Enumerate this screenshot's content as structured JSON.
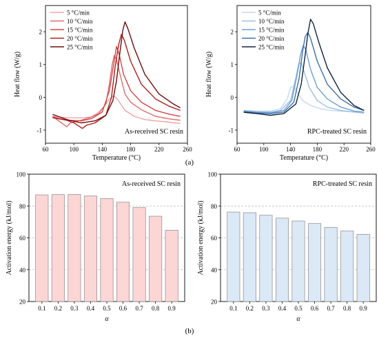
{
  "panel_labels": [
    "(a)",
    "(b)"
  ],
  "chart_data": [
    {
      "type": "line",
      "panel": "a",
      "annotation": "As-received SC resin",
      "xlabel": "Temperature (°C)",
      "ylabel": "Heat flow (W/g)",
      "xlim": [
        60,
        260
      ],
      "ylim": [
        -1.4,
        2.8
      ],
      "xticks": [
        60,
        100,
        140,
        180,
        220,
        260
      ],
      "yticks": [
        -1,
        0,
        1,
        2
      ],
      "legend_position": "top-left",
      "series": [
        {
          "name": "5 °C/min",
          "color": "#f2a3a3",
          "points": [
            [
              70,
              -0.58
            ],
            [
              90,
              -0.62
            ],
            [
              110,
              -0.63
            ],
            [
              125,
              -0.6
            ],
            [
              135,
              -0.45
            ],
            [
              142,
              -0.3
            ],
            [
              150,
              -0.05
            ],
            [
              156,
              0.05
            ],
            [
              162,
              -0.08
            ],
            [
              172,
              -0.4
            ],
            [
              185,
              -0.58
            ],
            [
              200,
              -0.68
            ],
            [
              215,
              -0.72
            ],
            [
              230,
              -0.75
            ],
            [
              250,
              -0.8
            ]
          ]
        },
        {
          "name": "10 °C/min",
          "color": "#e06b6b",
          "points": [
            [
              70,
              -0.58
            ],
            [
              90,
              -0.9
            ],
            [
              95,
              -0.78
            ],
            [
              110,
              -0.7
            ],
            [
              125,
              -0.6
            ],
            [
              135,
              -0.5
            ],
            [
              145,
              -0.2
            ],
            [
              150,
              0.4
            ],
            [
              154,
              1.0
            ],
            [
              157,
              1.28
            ],
            [
              160,
              1.15
            ],
            [
              165,
              0.7
            ],
            [
              172,
              0.1
            ],
            [
              180,
              -0.15
            ],
            [
              195,
              -0.38
            ],
            [
              215,
              -0.58
            ],
            [
              235,
              -0.66
            ],
            [
              250,
              -0.7
            ]
          ]
        },
        {
          "name": "15 °C/min",
          "color": "#d64545",
          "points": [
            [
              70,
              -0.6
            ],
            [
              90,
              -0.7
            ],
            [
              110,
              -0.72
            ],
            [
              125,
              -0.65
            ],
            [
              140,
              -0.45
            ],
            [
              150,
              0.2
            ],
            [
              156,
              1.0
            ],
            [
              160,
              1.55
            ],
            [
              164,
              1.3
            ],
            [
              170,
              0.7
            ],
            [
              180,
              0.2
            ],
            [
              195,
              -0.15
            ],
            [
              215,
              -0.4
            ],
            [
              235,
              -0.52
            ],
            [
              250,
              -0.58
            ]
          ]
        },
        {
          "name": "20 °C/min",
          "color": "#b01c1c",
          "points": [
            [
              70,
              -0.62
            ],
            [
              90,
              -0.7
            ],
            [
              100,
              -0.78
            ],
            [
              112,
              -0.95
            ],
            [
              118,
              -0.85
            ],
            [
              130,
              -0.78
            ],
            [
              145,
              -0.55
            ],
            [
              153,
              0.0
            ],
            [
              158,
              0.9
            ],
            [
              163,
              1.6
            ],
            [
              167,
              1.92
            ],
            [
              171,
              1.75
            ],
            [
              180,
              1.1
            ],
            [
              195,
              0.4
            ],
            [
              215,
              -0.05
            ],
            [
              235,
              -0.28
            ],
            [
              250,
              -0.4
            ]
          ]
        },
        {
          "name": "25 °C/min",
          "color": "#6e0a0a",
          "points": [
            [
              70,
              -0.52
            ],
            [
              90,
              -0.68
            ],
            [
              110,
              -0.78
            ],
            [
              130,
              -0.72
            ],
            [
              145,
              -0.55
            ],
            [
              155,
              -0.1
            ],
            [
              160,
              0.5
            ],
            [
              165,
              1.4
            ],
            [
              169,
              2.05
            ],
            [
              172,
              2.3
            ],
            [
              176,
              2.1
            ],
            [
              185,
              1.5
            ],
            [
              200,
              0.7
            ],
            [
              220,
              0.1
            ],
            [
              240,
              -0.2
            ],
            [
              250,
              -0.32
            ]
          ]
        }
      ]
    },
    {
      "type": "line",
      "panel": "a",
      "annotation": "RPC-treated SC resin",
      "xlabel": "Temperature (°C)",
      "ylabel": "Heat flow (W/g)",
      "xlim": [
        60,
        260
      ],
      "ylim": [
        -1.4,
        2.8
      ],
      "xticks": [
        60,
        100,
        140,
        180,
        220,
        260
      ],
      "yticks": [
        -1,
        0,
        1,
        2
      ],
      "legend_position": "top-left",
      "series": [
        {
          "name": "5 °C/min",
          "color": "#c4d9ef",
          "points": [
            [
              70,
              -0.4
            ],
            [
              90,
              -0.42
            ],
            [
              110,
              -0.42
            ],
            [
              125,
              -0.35
            ],
            [
              135,
              -0.05
            ],
            [
              140,
              0.3
            ],
            [
              145,
              0.35
            ],
            [
              150,
              0.15
            ],
            [
              158,
              -0.1
            ],
            [
              170,
              -0.25
            ],
            [
              185,
              -0.35
            ],
            [
              200,
              -0.4
            ],
            [
              220,
              -0.43
            ],
            [
              240,
              -0.45
            ],
            [
              250,
              -0.45
            ]
          ]
        },
        {
          "name": "10 °C/min",
          "color": "#9bbde4",
          "points": [
            [
              70,
              -0.4
            ],
            [
              90,
              -0.44
            ],
            [
              110,
              -0.45
            ],
            [
              125,
              -0.4
            ],
            [
              140,
              -0.1
            ],
            [
              148,
              0.6
            ],
            [
              152,
              1.0
            ],
            [
              156,
              1.05
            ],
            [
              160,
              0.8
            ],
            [
              168,
              0.3
            ],
            [
              180,
              -0.1
            ],
            [
              195,
              -0.3
            ],
            [
              215,
              -0.4
            ],
            [
              235,
              -0.45
            ],
            [
              250,
              -0.48
            ]
          ]
        },
        {
          "name": "15 °C/min",
          "color": "#6d9fd3",
          "points": [
            [
              70,
              -0.42
            ],
            [
              90,
              -0.46
            ],
            [
              110,
              -0.48
            ],
            [
              130,
              -0.4
            ],
            [
              142,
              -0.1
            ],
            [
              150,
              0.7
            ],
            [
              155,
              1.3
            ],
            [
              159,
              1.58
            ],
            [
              163,
              1.45
            ],
            [
              170,
              0.85
            ],
            [
              180,
              0.3
            ],
            [
              195,
              -0.05
            ],
            [
              215,
              -0.3
            ],
            [
              235,
              -0.42
            ],
            [
              250,
              -0.45
            ]
          ]
        },
        {
          "name": "20 °C/min",
          "color": "#3e6fa6",
          "points": [
            [
              70,
              -0.44
            ],
            [
              90,
              -0.48
            ],
            [
              110,
              -0.5
            ],
            [
              130,
              -0.45
            ],
            [
              145,
              -0.15
            ],
            [
              153,
              0.6
            ],
            [
              158,
              1.4
            ],
            [
              162,
              1.85
            ],
            [
              166,
              1.98
            ],
            [
              170,
              1.8
            ],
            [
              180,
              1.1
            ],
            [
              195,
              0.4
            ],
            [
              215,
              -0.05
            ],
            [
              235,
              -0.3
            ],
            [
              250,
              -0.4
            ]
          ]
        },
        {
          "name": "25 °C/min",
          "color": "#10233f",
          "points": [
            [
              70,
              -0.46
            ],
            [
              90,
              -0.5
            ],
            [
              110,
              -0.55
            ],
            [
              130,
              -0.5
            ],
            [
              148,
              -0.2
            ],
            [
              156,
              0.4
            ],
            [
              162,
              1.3
            ],
            [
              166,
              1.95
            ],
            [
              170,
              2.38
            ],
            [
              174,
              2.25
            ],
            [
              182,
              1.7
            ],
            [
              195,
              0.9
            ],
            [
              215,
              0.15
            ],
            [
              235,
              -0.25
            ],
            [
              250,
              -0.4
            ]
          ]
        }
      ]
    },
    {
      "type": "bar",
      "panel": "b",
      "annotation": "As-received SC resin",
      "xlabel": "α",
      "ylabel": "Activation energy (kJ/mol)",
      "categories": [
        "0.1",
        "0.2",
        "0.3",
        "0.4",
        "0.5",
        "0.6",
        "0.7",
        "0.8",
        "0.9"
      ],
      "values": [
        87.0,
        87.2,
        87.3,
        86.3,
        84.7,
        82.4,
        79.0,
        73.6,
        64.8
      ],
      "ylim": [
        20,
        100
      ],
      "yticks": [
        20,
        40,
        60,
        80,
        100
      ],
      "grid": "horizontal dashed",
      "bar_color": "#fcd5d5",
      "edge_color": "#8a8a8a"
    },
    {
      "type": "bar",
      "panel": "b",
      "annotation": "RPC-treated SC resin",
      "xlabel": "α",
      "ylabel": "Activation energy (kJ/mol)",
      "categories": [
        "0.1",
        "0.2",
        "0.3",
        "0.4",
        "0.5",
        "0.6",
        "0.7",
        "0.8",
        "0.9"
      ],
      "values": [
        76.2,
        75.8,
        74.2,
        72.4,
        70.6,
        69.0,
        66.6,
        64.3,
        62.2
      ],
      "ylim": [
        20,
        100
      ],
      "yticks": [
        20,
        40,
        60,
        80,
        100
      ],
      "grid": "horizontal dashed",
      "bar_color": "#dbe8f6",
      "edge_color": "#8a8a8a"
    }
  ]
}
